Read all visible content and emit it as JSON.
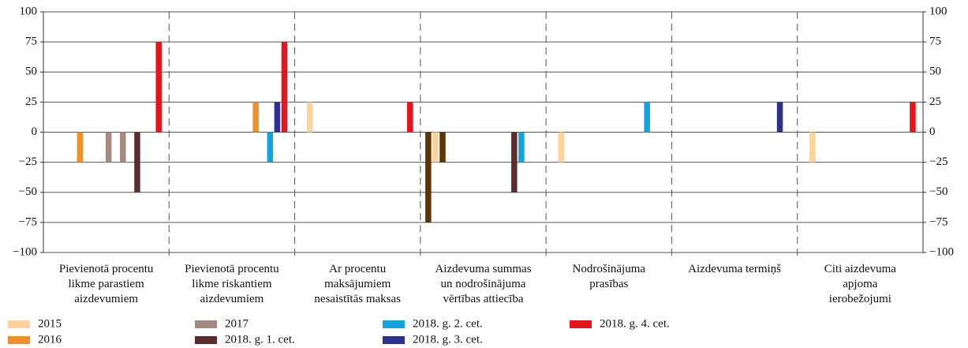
{
  "chart_data": {
    "type": "bar",
    "categories": [
      "Pievienotā procentu\nlikme parastiem\naizdevumiem",
      "Pievienotā procentu\nlikme riskantiem\naizdevumiem",
      "Ar procentu\nmaksājumiem\nnesaistītās maksas",
      "Aizdevuma summas\nun nodrošinājuma\nvērtības attiecība",
      "Nodrošinājuma\nprasības",
      "Aizdevuma termiņš",
      "Citi aizdevuma\napjoma\nierobežojumi"
    ],
    "series": [
      {
        "color": "#5e3405",
        "values": [
          null,
          null,
          null,
          -75,
          null,
          null,
          null
        ]
      },
      {
        "name": "2015",
        "color": "#fdd29b",
        "values": [
          null,
          null,
          25,
          -25,
          -25,
          null,
          -25
        ]
      },
      {
        "color": "#5e3405",
        "values": [
          null,
          null,
          null,
          -25,
          null,
          null,
          null
        ]
      },
      {
        "color": "#fdd29b",
        "values": [
          null,
          null,
          null,
          null,
          null,
          null,
          null
        ]
      },
      {
        "name": "2016",
        "color": "#f0902a",
        "values": [
          -25,
          null,
          null,
          null,
          null,
          null,
          null
        ]
      },
      {
        "color": "#f0902a",
        "values": [
          null,
          null,
          null,
          null,
          null,
          null,
          null
        ]
      },
      {
        "color": "#f0902a",
        "values": [
          null,
          null,
          null,
          null,
          null,
          null,
          null
        ]
      },
      {
        "color": "#f0902a",
        "values": [
          null,
          null,
          null,
          null,
          null,
          null,
          null
        ]
      },
      {
        "name": "2017",
        "color": "#a48a7f",
        "values": [
          -25,
          null,
          null,
          null,
          null,
          null,
          null
        ]
      },
      {
        "color": "#a48a7f",
        "values": [
          null,
          null,
          null,
          null,
          null,
          null,
          null
        ]
      },
      {
        "color": "#a48a7f",
        "values": [
          -25,
          null,
          null,
          null,
          null,
          null,
          null
        ]
      },
      {
        "color": "#f0902a",
        "values": [
          null,
          25,
          null,
          null,
          null,
          null,
          null
        ]
      },
      {
        "name": "2018. g. 1. cet.",
        "color": "#5a2e2e",
        "values": [
          -50,
          null,
          null,
          -50,
          null,
          null,
          null
        ]
      },
      {
        "name": "2018. g. 2. cet.",
        "color": "#12a4e0",
        "values": [
          null,
          -25,
          null,
          -25,
          25,
          null,
          null
        ]
      },
      {
        "name": "2018. g. 3. cet.",
        "color": "#2d3190",
        "values": [
          null,
          25,
          null,
          null,
          null,
          25,
          null
        ]
      },
      {
        "name": "2018. g. 4. cet.",
        "color": "#e8141b",
        "values": [
          75,
          75,
          25,
          null,
          null,
          null,
          25
        ]
      }
    ],
    "ylim": [
      -100,
      100
    ],
    "yticks": [
      {
        "value": -100,
        "label": "−100"
      },
      {
        "value": -75,
        "label": "−75"
      },
      {
        "value": -50,
        "label": "−50"
      },
      {
        "value": -25,
        "label": "−25"
      },
      0,
      25,
      50,
      75,
      100
    ],
    "y2lim": [
      -100,
      100
    ],
    "y2ticks": [
      {
        "value": -100,
        "label": "−100"
      },
      {
        "value": -75,
        "label": "−75"
      },
      {
        "value": -50,
        "label": "−50"
      },
      {
        "value": -25,
        "label": "−25"
      },
      0,
      25,
      50,
      75,
      100
    ],
    "grid": true
  }
}
